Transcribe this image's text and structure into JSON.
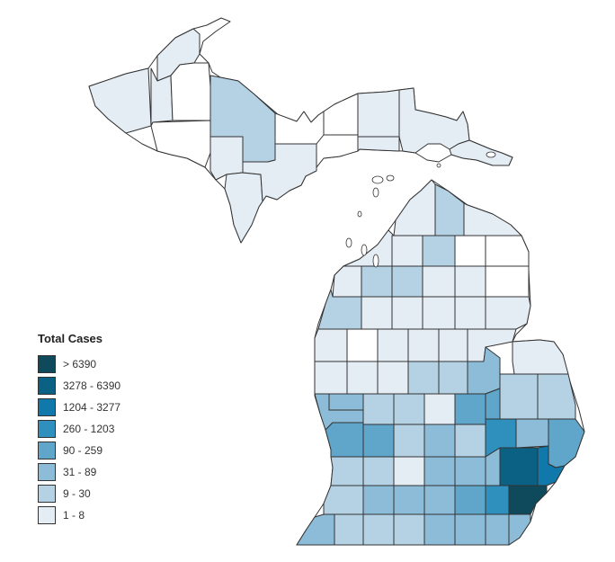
{
  "legend": {
    "title": "Total Cases",
    "bins": [
      {
        "label": "> 6390",
        "color": "#0e4a5c"
      },
      {
        "label": "3278 - 6390",
        "color": "#0b6184"
      },
      {
        "label": "1204 - 3277",
        "color": "#1078ab"
      },
      {
        "label": "260 - 1203",
        "color": "#2f8fbd"
      },
      {
        "label": "90 - 259",
        "color": "#5fa6ca"
      },
      {
        "label": "31 - 89",
        "color": "#8cbcd8"
      },
      {
        "label": "9 - 30",
        "color": "#b5d1e4"
      },
      {
        "label": "1 - 8",
        "color": "#e4ecf4"
      }
    ],
    "no_data_color": "#ffffff"
  }
}
